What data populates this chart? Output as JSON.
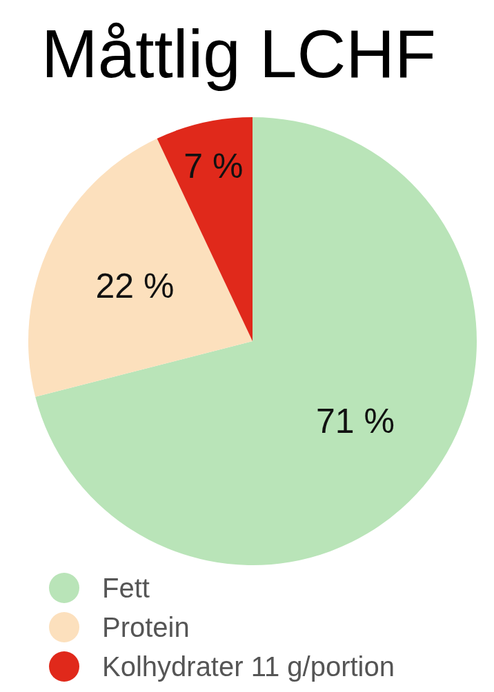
{
  "chart_data": {
    "type": "pie",
    "title": "Måttlig LCHF",
    "categories": [
      "Fett",
      "Protein",
      "Kolhydrater 11 g/portion"
    ],
    "values": [
      71,
      22,
      7
    ],
    "colors": [
      "#b9e4b8",
      "#fce0bd",
      "#e0291b"
    ],
    "value_labels": [
      "71 %",
      "22 %",
      "7 %"
    ],
    "legend": "bottom left"
  }
}
